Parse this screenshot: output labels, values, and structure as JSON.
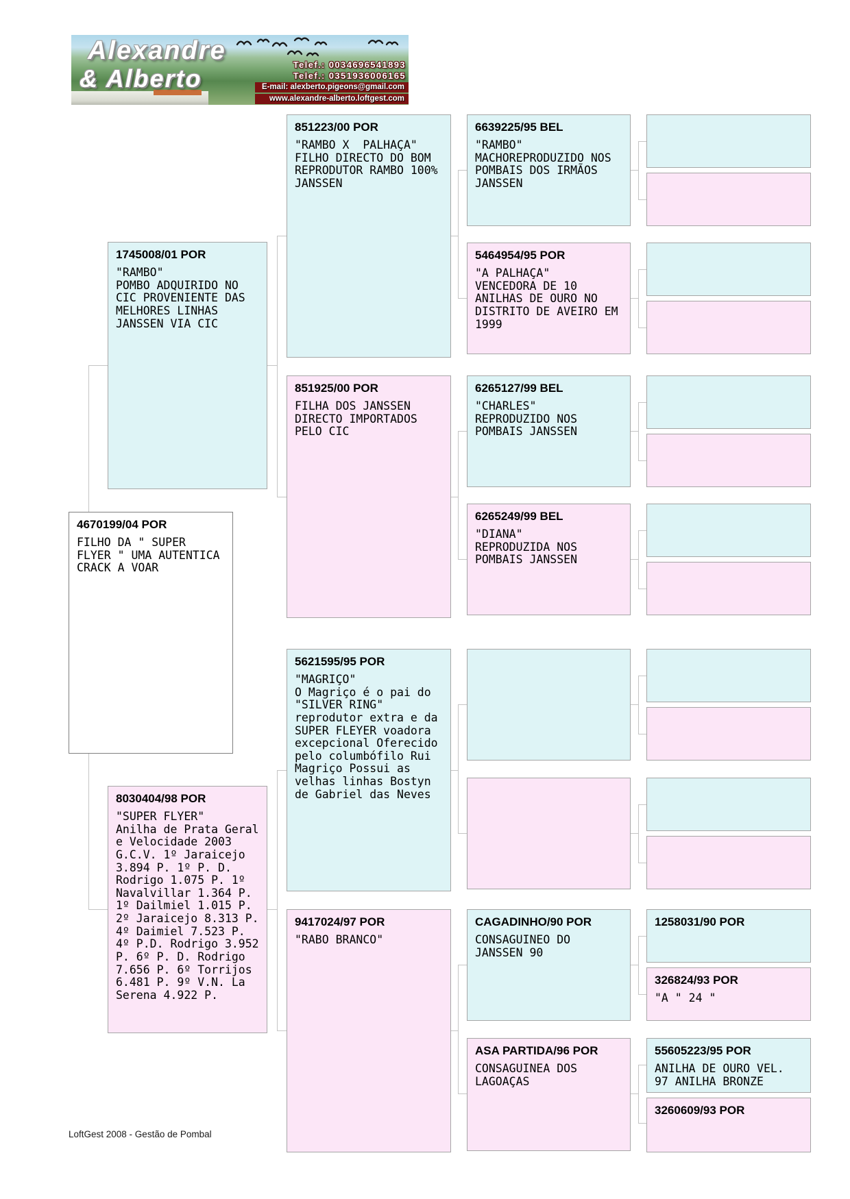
{
  "banner": {
    "name_line1": "Alexandre",
    "name_line2": "& Alberto",
    "phone1": "Telef.: 0034696541893",
    "phone2": "Telef.: 0351936006165",
    "email": "E-mail: alexberto.pigeons@gmail.com",
    "website": "www.alexandre-alberto.loftgest.com"
  },
  "pedigree": {
    "root": {
      "title": "4670199/04 POR",
      "body": "FILHO DA \" SUPER\nFLYER \" UMA AUTENTICA\nCRACK A VOAR"
    },
    "gen2": [
      {
        "title": "1745008/01 POR",
        "body": "\"RAMBO\"\nPOMBO ADQUIRIDO NO\nCIC PROVENIENTE DAS\nMELHORES LINHAS\nJANSSEN VIA CIC"
      },
      {
        "title": "8030404/98 POR",
        "body": "\"SUPER FLYER\"\nAnilha de Prata Geral\ne Velocidade 2003\nG.C.V. 1º Jaraicejo\n3.894 P. 1º P. D.\nRodrigo 1.075 P. 1º\nNavalvillar 1.364 P.\n1º Dailmiel 1.015 P.\n2º Jaraicejo 8.313 P.\n4º Daimiel 7.523 P.\n4º P.D. Rodrigo 3.952\nP. 6º P. D. Rodrigo\n7.656 P. 6º Torrijos\n6.481 P. 9º V.N. La\nSerena 4.922 P."
      }
    ],
    "gen3": [
      {
        "title": "851223/00 POR",
        "body": "\"RAMBO X  PALHAÇA\"\nFILHO DIRECTO DO BOM\nREPRODUTOR RAMBO 100%\nJANSSEN"
      },
      {
        "title": "851925/00 POR",
        "body": "FILHA DOS JANSSEN\nDIRECTO IMPORTADOS\nPELO CIC"
      },
      {
        "title": "5621595/95 POR",
        "body": "\"MAGRIÇO\"\nO Magriço é o pai do\n\"SILVER RING\"\nreprodutor extra e da\nSUPER FLEYER voadora\nexcepcional Oferecido\npelo columbófilo Rui\nMagriço Possui as\nvelhas linhas Bostyn\nde Gabriel das Neves"
      },
      {
        "title": "9417024/97 POR",
        "body": "\"RABO BRANCO\""
      }
    ],
    "gen4": [
      {
        "title": "6639225/95 BEL",
        "body": "\"RAMBO\"\nMACHOREPRODUZIDO NOS\nPOMBAIS DOS IRMÃOS\nJANSSEN"
      },
      {
        "title": "5464954/95 POR",
        "body": "\"A PALHAÇA\"\nVENCEDORA DE 10\nANILHAS DE OURO NO\nDISTRITO DE AVEIRO EM\n1999"
      },
      {
        "title": "6265127/99 BEL",
        "body": "\"CHARLES\"\nREPRODUZIDO NOS\nPOMBAIS JANSSEN"
      },
      {
        "title": "6265249/99 BEL",
        "body": "\"DIANA\"\nREPRODUZIDA NOS\nPOMBAIS JANSSEN"
      },
      {
        "title": "",
        "body": ""
      },
      {
        "title": "",
        "body": ""
      },
      {
        "title": "CAGADINHO/90 POR",
        "body": "CONSAGUINEO DO\nJANSSEN 90"
      },
      {
        "title": "ASA PARTIDA/96 POR",
        "body": "CONSAGUINEA DOS\nLAGOAÇAS"
      }
    ],
    "gen5": [
      {
        "title": "",
        "body": ""
      },
      {
        "title": "",
        "body": ""
      },
      {
        "title": "",
        "body": ""
      },
      {
        "title": "",
        "body": ""
      },
      {
        "title": "",
        "body": ""
      },
      {
        "title": "",
        "body": ""
      },
      {
        "title": "",
        "body": ""
      },
      {
        "title": "",
        "body": ""
      },
      {
        "title": "",
        "body": ""
      },
      {
        "title": "",
        "body": ""
      },
      {
        "title": "",
        "body": ""
      },
      {
        "title": "",
        "body": ""
      },
      {
        "title": "1258031/90 POR",
        "body": ""
      },
      {
        "title": "326824/93 POR",
        "body": "\"A \" 24 \""
      },
      {
        "title": "55605223/95 POR",
        "body": "ANILHA DE OURO VEL.\n97 ANILHA BRONZE"
      },
      {
        "title": "3260609/93 POR",
        "body": ""
      }
    ]
  },
  "footer": {
    "text": "LoftGest 2008 - Gestão de Pombal"
  },
  "colors": {
    "cyan": "#def4f6",
    "pink": "#fce6f7",
    "box_border": "#a6a6a6",
    "connector": "#c4c4c4",
    "banner_bar": "#7c1212"
  }
}
